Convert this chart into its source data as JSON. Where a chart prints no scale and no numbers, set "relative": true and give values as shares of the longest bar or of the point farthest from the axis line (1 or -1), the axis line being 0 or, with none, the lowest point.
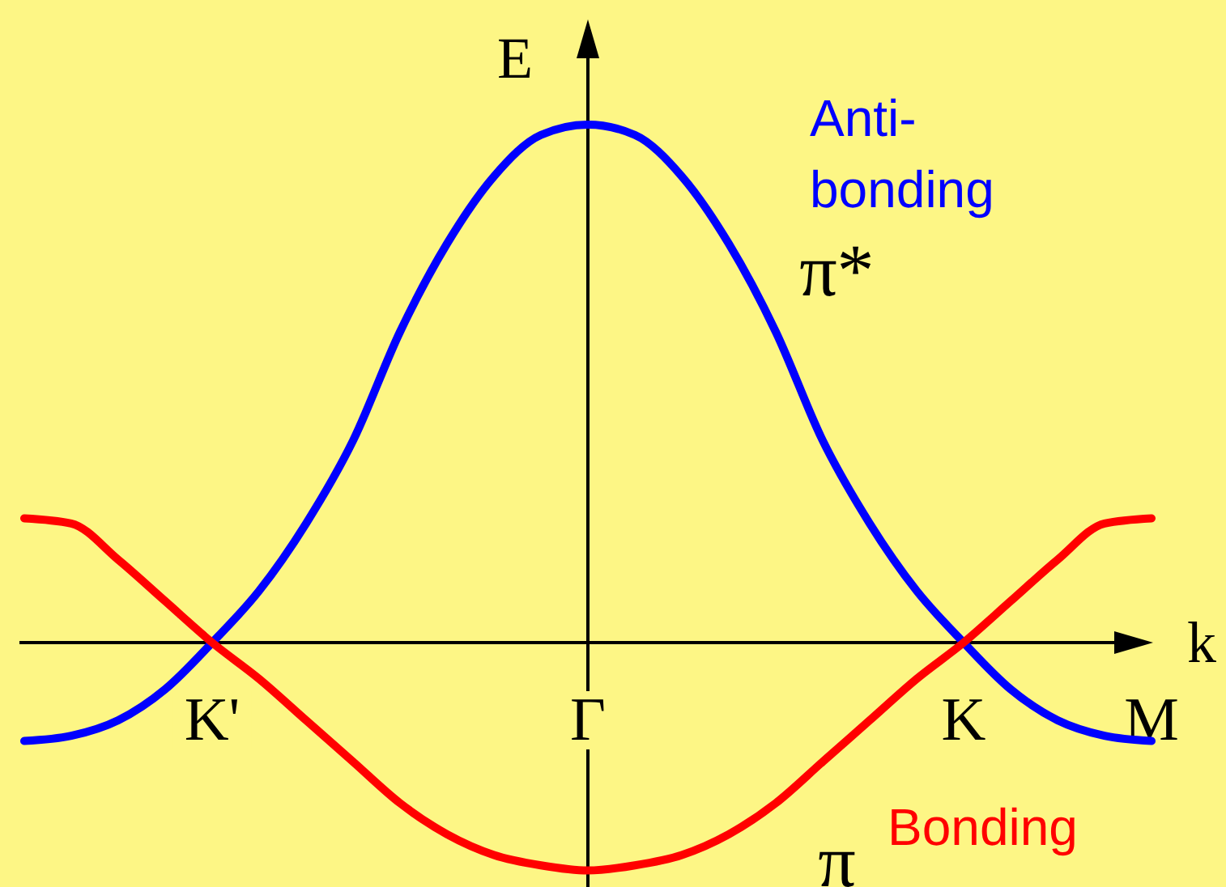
{
  "chart_data": {
    "type": "line",
    "relative": true,
    "xlabel": "k",
    "ylabel": "E",
    "legend": false,
    "marker": "none",
    "line_style": "solid",
    "categories": [
      null,
      null,
      null,
      null,
      "K'",
      null,
      null,
      null,
      null,
      null,
      null,
      null,
      "Γ",
      null,
      null,
      null,
      null,
      null,
      null,
      null,
      "K",
      null,
      null,
      null,
      "M"
    ],
    "series": [
      {
        "name": "π*",
        "color": "#0000ff",
        "values": [
          -0.19,
          -0.18,
          -0.15,
          -0.09,
          0,
          0.1,
          0.23,
          0.39,
          0.6,
          0.77,
          0.9,
          0.98,
          1,
          0.98,
          0.9,
          0.77,
          0.6,
          0.39,
          0.23,
          0.1,
          0,
          -0.09,
          -0.15,
          -0.18,
          -0.19
        ]
      },
      {
        "name": "π",
        "color": "#ff0000",
        "values": [
          0.24,
          0.23,
          0.16,
          0.08,
          0,
          -0.07,
          -0.15,
          -0.23,
          -0.31,
          -0.37,
          -0.41,
          -0.43,
          -0.44,
          -0.43,
          -0.41,
          -0.37,
          -0.31,
          -0.23,
          -0.15,
          -0.07,
          0,
          0.08,
          0.16,
          0.23,
          0.24
        ]
      }
    ],
    "annotations": [
      "Anti-\nbonding",
      "Bonding"
    ]
  }
}
